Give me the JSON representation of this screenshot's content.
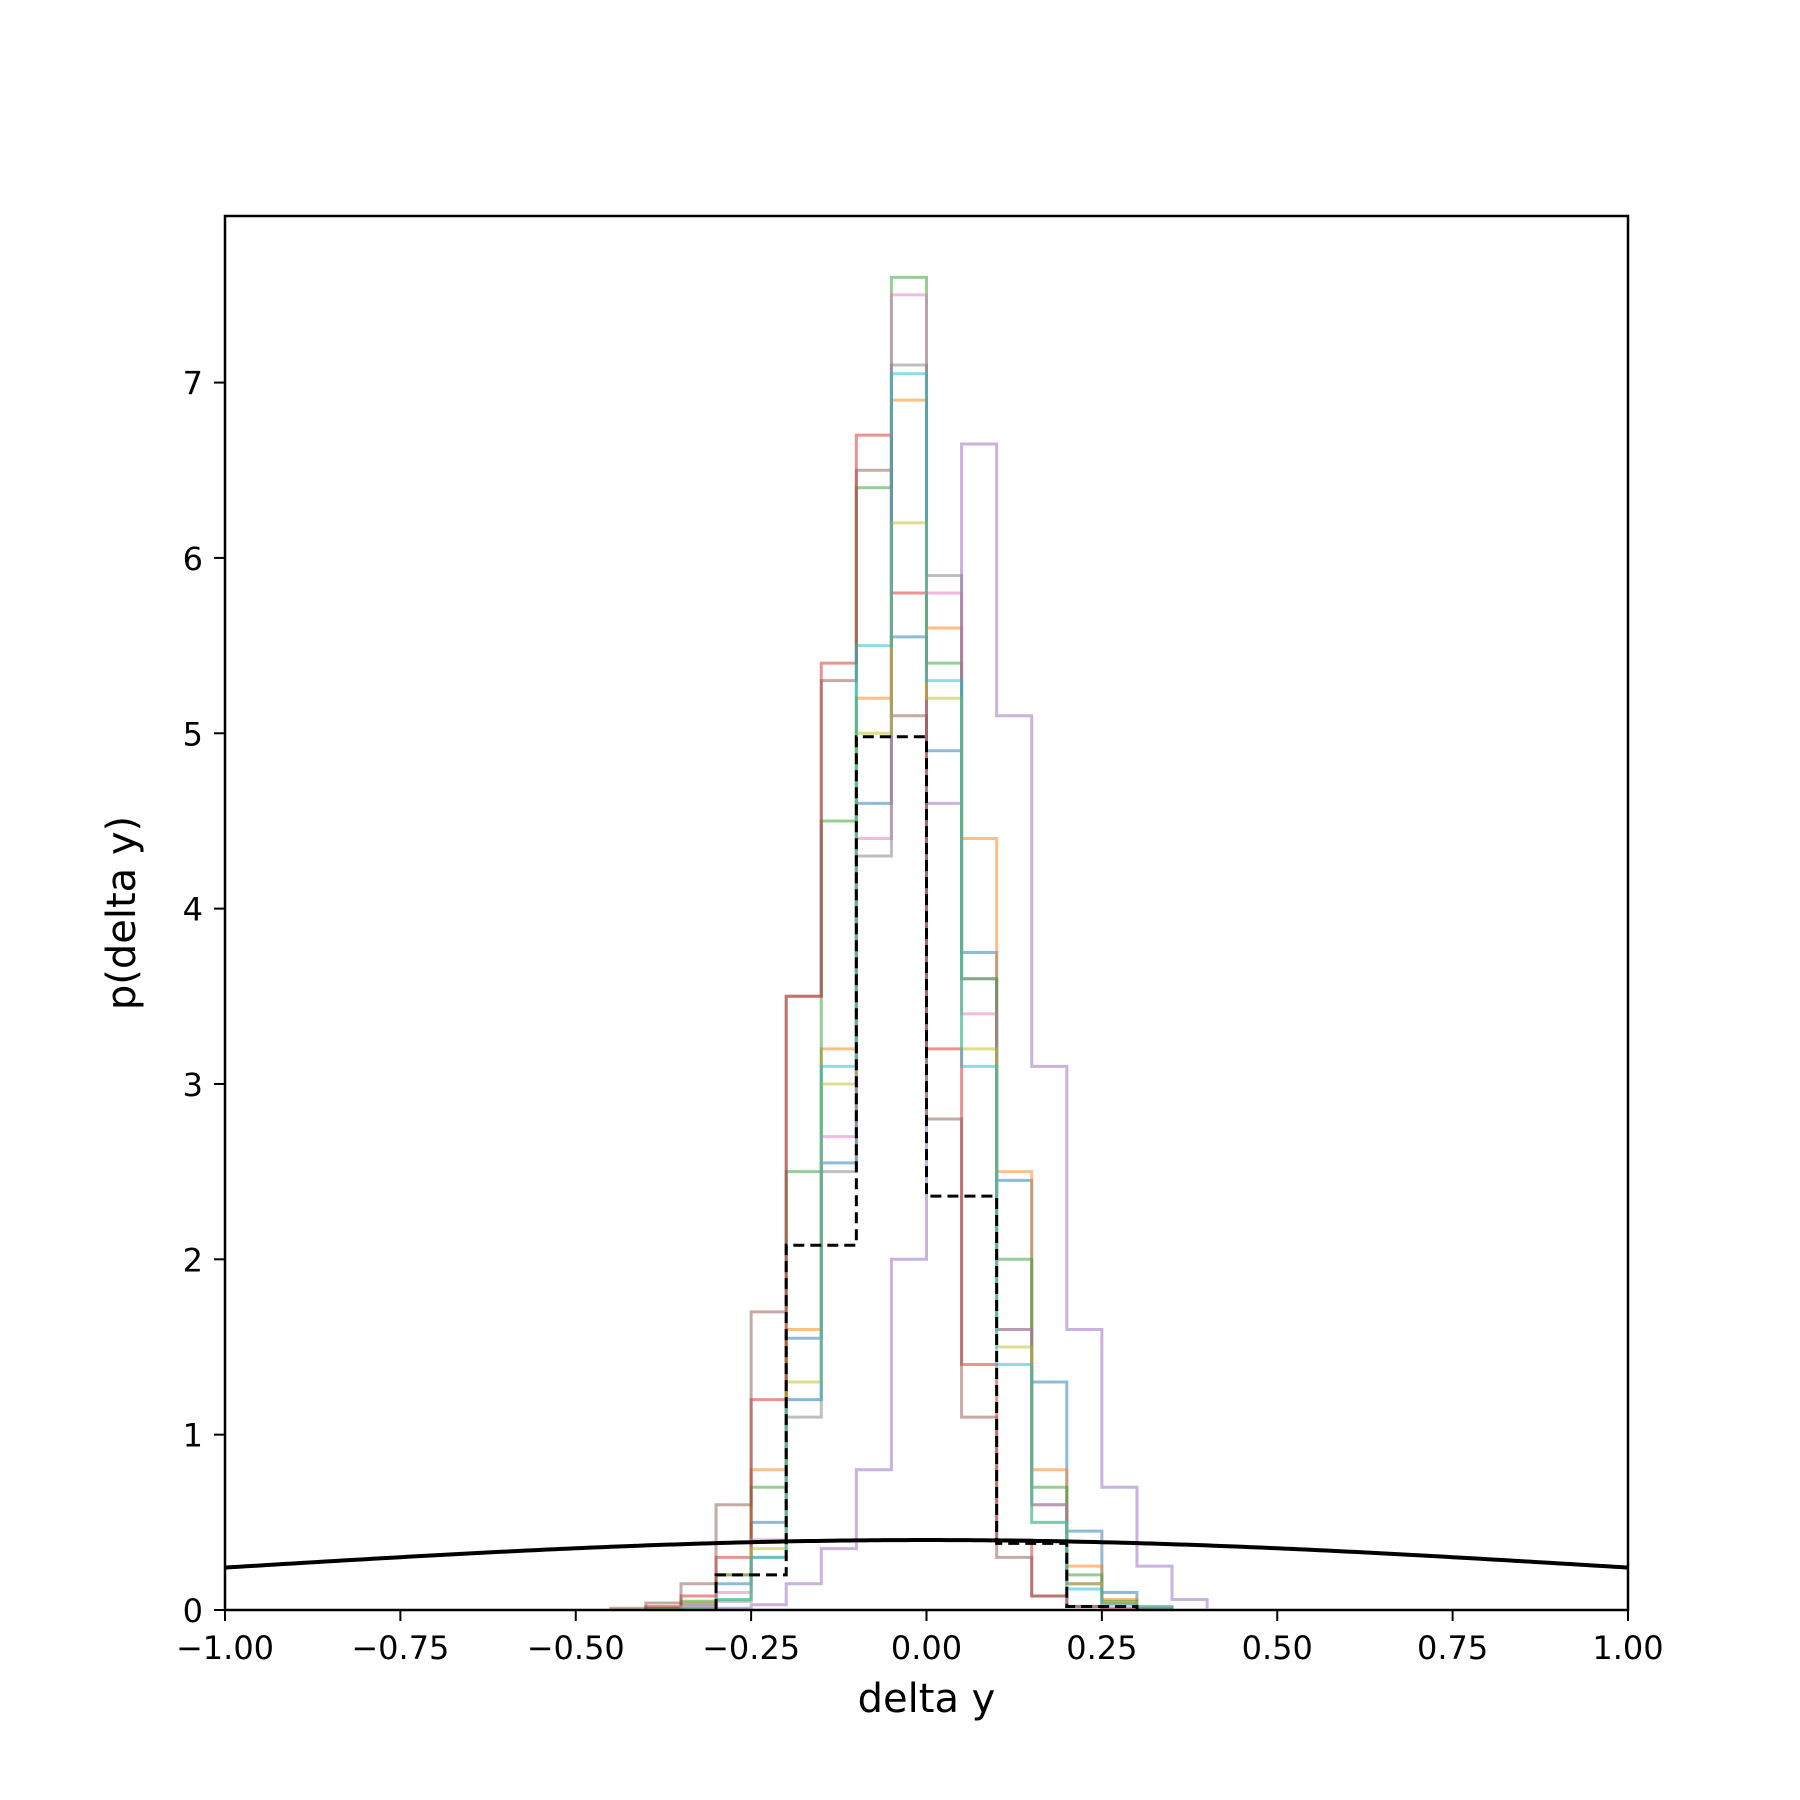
{
  "chart_data": {
    "type": "histogram",
    "xlabel": "delta y",
    "ylabel": "p(delta y)",
    "xlim": [
      -1.0,
      1.0
    ],
    "ylim": [
      0,
      7.95
    ],
    "grid": false,
    "legend": "none",
    "x_ticks": [
      -1.0,
      -0.75,
      -0.5,
      -0.25,
      0.0,
      0.25,
      0.5,
      0.75,
      1.0
    ],
    "x_tick_labels": [
      "−1.00",
      "−0.75",
      "−0.50",
      "−0.25",
      "0.00",
      "0.25",
      "0.50",
      "0.75",
      "1.00"
    ],
    "y_ticks": [
      0,
      1,
      2,
      3,
      4,
      5,
      6,
      7
    ],
    "y_tick_labels": [
      "0",
      "1",
      "2",
      "3",
      "4",
      "5",
      "6",
      "7"
    ],
    "prior_curve": {
      "style": "solid",
      "color": "#000000",
      "mean": 0.0,
      "std": 1.0
    },
    "reference_histogram": {
      "style": "dashed",
      "color": "#000000",
      "bin_edges": [
        -0.3,
        -0.2,
        -0.1,
        0.0,
        0.1,
        0.2,
        0.3
      ],
      "values": [
        0.2,
        2.08,
        4.98,
        2.36,
        0.38,
        0.02
      ]
    },
    "series": [
      {
        "color": "#1f77b4",
        "bin_edges": [
          -0.4,
          -0.35,
          -0.3,
          -0.25,
          -0.2,
          -0.15,
          -0.1,
          -0.05,
          0.0,
          0.05,
          0.1,
          0.15,
          0.2,
          0.25,
          0.3,
          0.35
        ],
        "values": [
          0.01,
          0.03,
          0.15,
          0.5,
          1.55,
          2.55,
          4.6,
          5.55,
          4.9,
          3.75,
          2.45,
          1.3,
          0.45,
          0.1,
          0.02
        ]
      },
      {
        "color": "#ff7f0e",
        "bin_edges": [
          -0.4,
          -0.35,
          -0.3,
          -0.25,
          -0.2,
          -0.15,
          -0.1,
          -0.05,
          0.0,
          0.05,
          0.1,
          0.15,
          0.2,
          0.25,
          0.3,
          0.35
        ],
        "values": [
          0.01,
          0.04,
          0.2,
          0.8,
          1.6,
          3.2,
          5.2,
          6.9,
          5.6,
          4.4,
          2.5,
          0.8,
          0.25,
          0.06,
          0.01
        ]
      },
      {
        "color": "#2ca02c",
        "bin_edges": [
          -0.4,
          -0.35,
          -0.3,
          -0.25,
          -0.2,
          -0.15,
          -0.1,
          -0.05,
          0.0,
          0.05,
          0.1,
          0.15,
          0.2,
          0.25,
          0.3,
          0.35
        ],
        "values": [
          0.01,
          0.05,
          0.2,
          0.7,
          2.5,
          4.5,
          6.4,
          7.6,
          5.4,
          3.6,
          2.0,
          0.7,
          0.2,
          0.05,
          0.01
        ]
      },
      {
        "color": "#d62728",
        "bin_edges": [
          -0.4,
          -0.35,
          -0.3,
          -0.25,
          -0.2,
          -0.15,
          -0.1,
          -0.05,
          0.0,
          0.05,
          0.1,
          0.15,
          0.2,
          0.25,
          0.3,
          0.35
        ],
        "values": [
          0.02,
          0.08,
          0.3,
          1.2,
          3.5,
          5.4,
          6.7,
          5.8,
          3.2,
          1.4,
          0.4,
          0.08,
          0.02,
          0.01,
          0.0
        ]
      },
      {
        "color": "#9467bd",
        "bin_edges": [
          -0.3,
          -0.25,
          -0.2,
          -0.15,
          -0.1,
          -0.05,
          0.0,
          0.05,
          0.1,
          0.15,
          0.2,
          0.25,
          0.3,
          0.35,
          0.4
        ],
        "values": [
          0.01,
          0.03,
          0.15,
          0.35,
          0.8,
          2.0,
          4.6,
          6.65,
          5.1,
          3.1,
          1.6,
          0.7,
          0.25,
          0.06,
          0.01
        ]
      },
      {
        "color": "#8c564b",
        "bin_edges": [
          -0.45,
          -0.4,
          -0.35,
          -0.3,
          -0.25,
          -0.2,
          -0.15,
          -0.1,
          -0.05,
          0.0,
          0.05,
          0.1,
          0.15,
          0.2,
          0.25
        ],
        "values": [
          0.01,
          0.04,
          0.15,
          0.6,
          1.7,
          3.5,
          5.3,
          6.5,
          5.1,
          2.8,
          1.1,
          0.3,
          0.08,
          0.02,
          0.01
        ]
      },
      {
        "color": "#e377c2",
        "bin_edges": [
          -0.35,
          -0.3,
          -0.25,
          -0.2,
          -0.15,
          -0.1,
          -0.05,
          0.0,
          0.05,
          0.1,
          0.15,
          0.2,
          0.25,
          0.3,
          0.35
        ],
        "values": [
          0.02,
          0.1,
          0.4,
          1.2,
          2.7,
          4.4,
          7.5,
          5.8,
          3.4,
          1.6,
          0.6,
          0.15,
          0.04,
          0.01,
          0.0
        ]
      },
      {
        "color": "#7f7f7f",
        "bin_edges": [
          -0.35,
          -0.3,
          -0.25,
          -0.2,
          -0.15,
          -0.1,
          -0.05,
          0.0,
          0.05,
          0.1,
          0.15,
          0.2,
          0.25,
          0.3,
          0.35
        ],
        "values": [
          0.01,
          0.05,
          0.3,
          1.1,
          2.5,
          4.3,
          7.1,
          5.9,
          3.6,
          1.6,
          0.6,
          0.15,
          0.04,
          0.01,
          0.0
        ]
      },
      {
        "color": "#bcbd22",
        "bin_edges": [
          -0.35,
          -0.3,
          -0.25,
          -0.2,
          -0.15,
          -0.1,
          -0.05,
          0.0,
          0.05,
          0.1,
          0.15,
          0.2,
          0.25,
          0.3,
          0.35
        ],
        "values": [
          0.01,
          0.06,
          0.35,
          1.3,
          3.0,
          5.0,
          6.2,
          5.2,
          3.2,
          1.5,
          0.5,
          0.15,
          0.04,
          0.01,
          0.0
        ]
      },
      {
        "color": "#17becf",
        "bin_edges": [
          -0.35,
          -0.3,
          -0.25,
          -0.2,
          -0.15,
          -0.1,
          -0.05,
          0.0,
          0.05,
          0.1,
          0.15,
          0.2,
          0.25,
          0.3,
          0.35
        ],
        "values": [
          0.01,
          0.06,
          0.3,
          1.2,
          3.1,
          5.5,
          7.05,
          5.3,
          3.1,
          1.4,
          0.5,
          0.12,
          0.03,
          0.01,
          0.0
        ]
      }
    ]
  }
}
